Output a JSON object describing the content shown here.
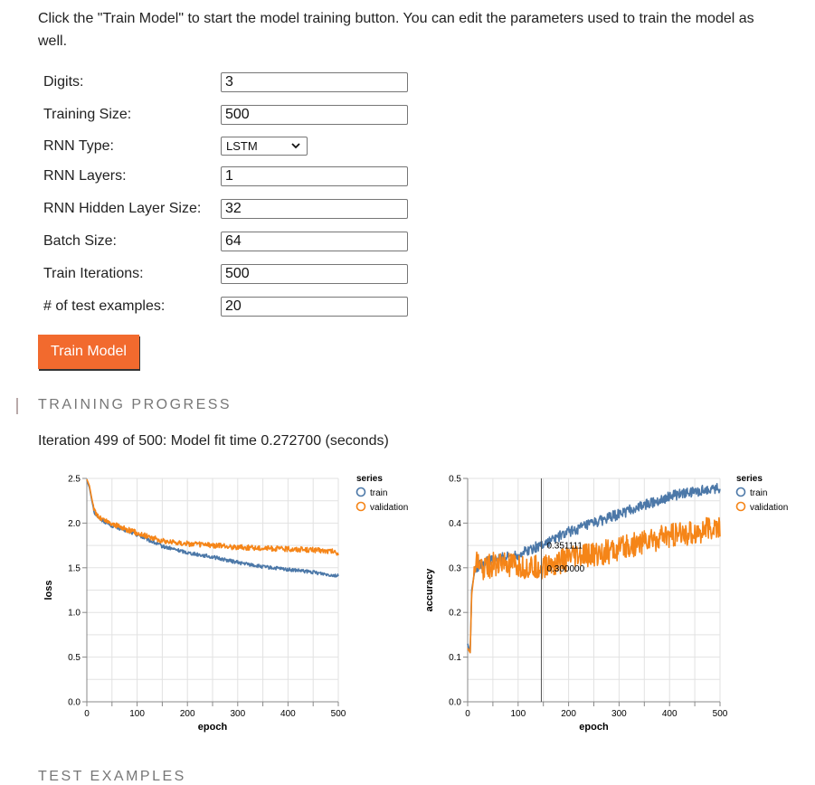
{
  "intro": {
    "text": "Click the \"Train Model\" to start the model training button. You can edit the parameters used to train the model as well."
  },
  "params": [
    {
      "label": "Digits:",
      "value": "3",
      "type": "input"
    },
    {
      "label": "Training Size:",
      "value": "500",
      "type": "input"
    },
    {
      "label": "RNN Type:",
      "value": "LSTM",
      "type": "select"
    },
    {
      "label": "RNN Layers:",
      "value": "1",
      "type": "input"
    },
    {
      "label": "RNN Hidden Layer Size:",
      "value": "32",
      "type": "input"
    },
    {
      "label": "Batch Size:",
      "value": "64",
      "type": "input"
    },
    {
      "label": "Train Iterations:",
      "value": "500",
      "type": "input"
    },
    {
      "label": "# of test examples:",
      "value": "20",
      "type": "input"
    }
  ],
  "train_button": {
    "label": "Train Model"
  },
  "progress": {
    "title": "TRAINING PROGRESS",
    "status": "Iteration 499 of 500: Model fit time 0.272700 (seconds)"
  },
  "next_section": {
    "title": "TEST EXAMPLES"
  },
  "colors": {
    "train": "#4c78a8",
    "validation": "#f58518",
    "button": "#f26a2e"
  },
  "chart_data": [
    {
      "type": "line",
      "xlabel": "epoch",
      "ylabel": "loss",
      "xlim": [
        0,
        500
      ],
      "ylim": [
        0,
        2.5
      ],
      "x_ticks": [
        0,
        100,
        200,
        300,
        400,
        500
      ],
      "y_ticks": [
        0.0,
        0.5,
        1.0,
        1.5,
        2.0,
        2.5
      ],
      "y_tick_labels": [
        "0.0",
        "0.5",
        "1.0",
        "1.5",
        "2.0",
        "2.5"
      ],
      "grid": true,
      "legend": {
        "title": "series",
        "position": "top-right"
      },
      "series": [
        {
          "name": "train",
          "color": "#4c78a8",
          "noise": 0.008,
          "points": [
            [
              0,
              2.48
            ],
            [
              5,
              2.4
            ],
            [
              10,
              2.25
            ],
            [
              15,
              2.12
            ],
            [
              25,
              2.05
            ],
            [
              50,
              1.97
            ],
            [
              100,
              1.87
            ],
            [
              150,
              1.74
            ],
            [
              200,
              1.67
            ],
            [
              250,
              1.62
            ],
            [
              300,
              1.56
            ],
            [
              350,
              1.51
            ],
            [
              400,
              1.48
            ],
            [
              450,
              1.45
            ],
            [
              500,
              1.41
            ]
          ]
        },
        {
          "name": "validation",
          "color": "#f58518",
          "noise": 0.012,
          "points": [
            [
              0,
              2.49
            ],
            [
              5,
              2.42
            ],
            [
              10,
              2.27
            ],
            [
              15,
              2.14
            ],
            [
              25,
              2.06
            ],
            [
              50,
              1.99
            ],
            [
              100,
              1.89
            ],
            [
              150,
              1.8
            ],
            [
              200,
              1.77
            ],
            [
              250,
              1.75
            ],
            [
              300,
              1.73
            ],
            [
              350,
              1.72
            ],
            [
              400,
              1.71
            ],
            [
              450,
              1.7
            ],
            [
              490,
              1.68
            ],
            [
              500,
              1.66
            ]
          ]
        }
      ]
    },
    {
      "type": "line",
      "xlabel": "epoch",
      "ylabel": "accuracy",
      "xlim": [
        0,
        500
      ],
      "ylim": [
        0,
        0.5
      ],
      "x_ticks": [
        0,
        100,
        200,
        300,
        400,
        500
      ],
      "y_ticks": [
        0.0,
        0.1,
        0.2,
        0.3,
        0.4,
        0.5
      ],
      "y_tick_labels": [
        "0.0",
        "0.1",
        "0.2",
        "0.3",
        "0.4",
        "0.5"
      ],
      "grid": true,
      "legend": {
        "title": "series",
        "position": "top-right"
      },
      "hover": {
        "epoch": 146,
        "labels": [
          "0.351111",
          "0.300000"
        ],
        "values": [
          0.351111,
          0.3
        ]
      },
      "series": [
        {
          "name": "train",
          "color": "#4c78a8",
          "noise": 0.006,
          "points": [
            [
              0,
              0.13
            ],
            [
              5,
              0.11
            ],
            [
              8,
              0.25
            ],
            [
              15,
              0.3
            ],
            [
              30,
              0.31
            ],
            [
              60,
              0.32
            ],
            [
              100,
              0.33
            ],
            [
              146,
              0.351
            ],
            [
              200,
              0.38
            ],
            [
              250,
              0.4
            ],
            [
              300,
              0.42
            ],
            [
              350,
              0.44
            ],
            [
              400,
              0.46
            ],
            [
              450,
              0.47
            ],
            [
              500,
              0.48
            ]
          ]
        },
        {
          "name": "validation",
          "color": "#f58518",
          "noise": 0.014,
          "points": [
            [
              0,
              0.12
            ],
            [
              5,
              0.11
            ],
            [
              8,
              0.24
            ],
            [
              15,
              0.31
            ],
            [
              30,
              0.3
            ],
            [
              60,
              0.31
            ],
            [
              100,
              0.3
            ],
            [
              146,
              0.3
            ],
            [
              200,
              0.32
            ],
            [
              250,
              0.33
            ],
            [
              300,
              0.34
            ],
            [
              350,
              0.36
            ],
            [
              400,
              0.37
            ],
            [
              450,
              0.38
            ],
            [
              500,
              0.39
            ]
          ]
        }
      ]
    }
  ]
}
